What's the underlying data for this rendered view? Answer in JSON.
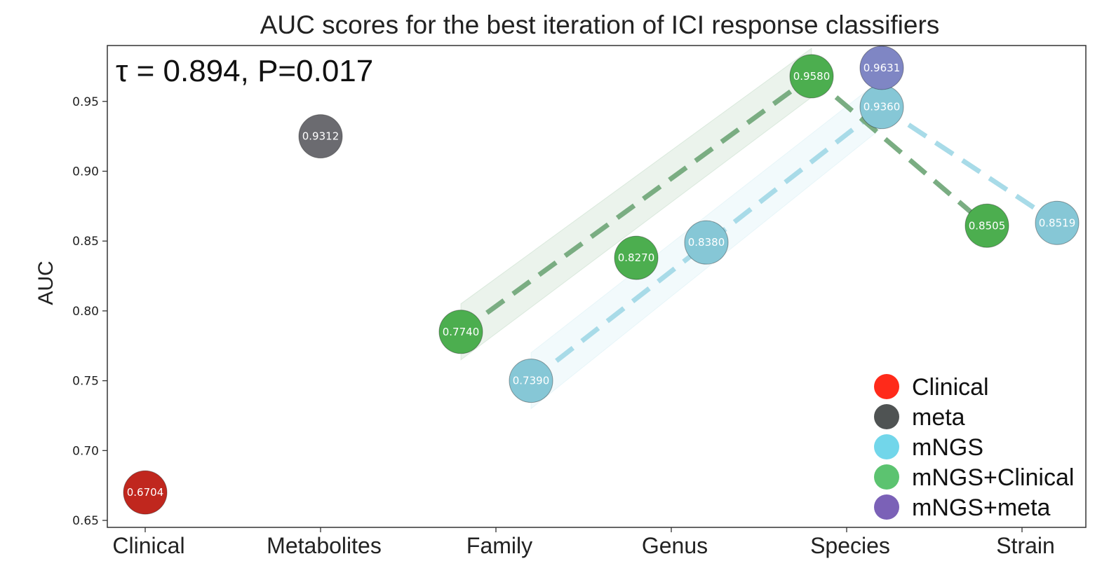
{
  "chart_data": {
    "type": "scatter",
    "title": "AUC scores for the best iteration of ICI response classifiers",
    "annotation": "τ = 0.894, P=0.017",
    "ylabel": "AUC",
    "xlabel": "",
    "categories": [
      "Clinical",
      "Metabolites",
      "Family",
      "Genus",
      "Species",
      "Strain"
    ],
    "ylim": [
      0.645,
      0.99
    ],
    "yticks": [
      "0.65",
      "0.70",
      "0.75",
      "0.80",
      "0.85",
      "0.90",
      "0.95"
    ],
    "grid": false,
    "legend_position": "bottom-right",
    "series": [
      {
        "name": "Clinical",
        "color": "#c0271e",
        "legend_color": "#ff2a1a",
        "points": [
          {
            "x": "Clinical",
            "y": 0.67,
            "label": "0.6704"
          }
        ]
      },
      {
        "name": "meta",
        "color": "#6b6b70",
        "legend_color": "#4f5353",
        "points": [
          {
            "x": "Metabolites",
            "y": 0.925,
            "label": "0.9312"
          }
        ]
      },
      {
        "name": "mNGS",
        "color": "#86c7d6",
        "legend_color": "#72d6ea",
        "line_color": "#a8dbe8",
        "points": [
          {
            "x": "Family",
            "y": 0.75,
            "label": "0.7390"
          },
          {
            "x": "Genus",
            "y": 0.849,
            "label": "0.8380"
          },
          {
            "x": "Species",
            "y": 0.946,
            "label": "0.9360"
          },
          {
            "x": "Strain",
            "y": 0.863,
            "label": "0.8519"
          }
        ]
      },
      {
        "name": "mNGS+Clinical",
        "color": "#4cae4f",
        "legend_color": "#5cc370",
        "line_color": "#7aad82",
        "points": [
          {
            "x": "Family",
            "y": 0.785,
            "label": "0.7740"
          },
          {
            "x": "Genus",
            "y": 0.838,
            "label": "0.8270"
          },
          {
            "x": "Species",
            "y": 0.968,
            "label": "0.9580"
          },
          {
            "x": "Strain",
            "y": 0.861,
            "label": "0.8505"
          }
        ]
      },
      {
        "name": "mNGS+meta",
        "color": "#7f86c4",
        "legend_color": "#7b61b7",
        "points": [
          {
            "x": "Species",
            "y": 0.974,
            "label": "0.9631"
          }
        ]
      }
    ]
  }
}
